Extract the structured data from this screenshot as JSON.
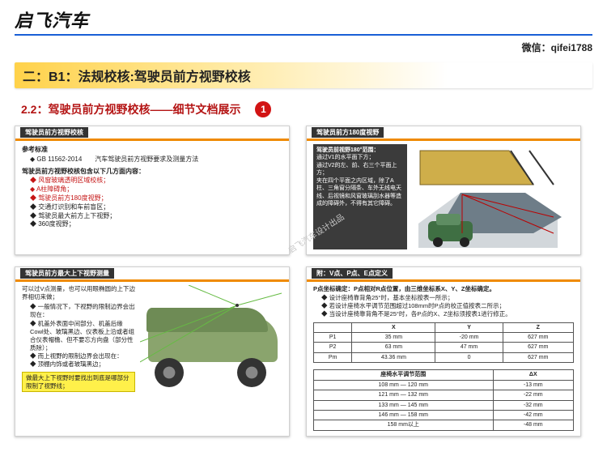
{
  "header": {
    "logo": "启飞汽车",
    "wechat": "微信：qifei1788"
  },
  "title": "二：B1：法规校核:驾驶员前方视野校核",
  "subtitle": "2.2：驾驶员前方视野校核——细节文档展示",
  "badge": "1",
  "watermark": "启飞汽车设计出品",
  "panel1": {
    "title": "驾驶员前方视野校核",
    "ref_head": "参考标准",
    "ref_item": "GB 11562-2014　　汽车驾驶员前方视野要求及测量方法",
    "sec_head": "驾驶员前方视野校核包含以下几方面内容：",
    "items": [
      {
        "t": "风窗玻璃透明区域校核；",
        "red": true
      },
      {
        "t": "A柱障碍角；",
        "red": true
      },
      {
        "t": "驾驶员前方180度视野；",
        "red": true
      },
      {
        "t": "交通灯识别和车前盲区；",
        "red": false
      },
      {
        "t": "驾驶员最大前方上下视野；",
        "red": false
      },
      {
        "t": "360度视野；",
        "red": false
      }
    ]
  },
  "panel2": {
    "title": "驾驶员前方180度视野",
    "box_head": "驾驶员前视野180°范围：",
    "lines": [
      "通过V1的水平面下方；",
      "通过V2的左、前、右三个平面上方；",
      "夹在四个平面之内区域，除了A柱、三角窗分隔条、车外无线电天线、后视镜和风窗玻璃刮水器等造成的障碍外，不得有其它障碍。"
    ],
    "colors": {
      "windshield": "#cfae4a",
      "car": "#3f6f43",
      "road": "#6e7d88"
    }
  },
  "panel3": {
    "title": "驾驶员前方最大上下视野测量",
    "line1": "可以过V点测量，也可以用眼椭圆的上下边界相切来做；",
    "bullets": [
      "一般情况下，下视野的限制边界会出现在：",
      "机盖外表面中间部分、机盖后缘Cowl处、玻璃黑边、仪表板上沿或者组合仪表帽檐、但不要忘方向盘（部分性质除）；",
      "而上视野的限制边界会出现在：",
      "顶棚内饰或者玻璃黑边；"
    ],
    "highlight": "做最大上下视野时要找出到底是哪部分限制了视野线；",
    "colors": {
      "body": "#8aa46d",
      "wheel_rim": "#888888",
      "tire": "#333333"
    }
  },
  "panel4": {
    "title": "附：V点、P点、E点定义",
    "def_head": "P点坐标确定：P点相对R点位置，由三维坐标系X、Y、Z坐标确定。",
    "b1": "设计座椅靠背角25°时，基本坐标按表一所示；",
    "b2": "若设计座椅水平调节范围超过108mm时P点的校正值按表二所示；",
    "b3": "当设计座椅靠背角不是25°时，各P点的X、Z坐标须按表1进行修正。",
    "table1": {
      "head": [
        "",
        "X",
        "Y",
        "Z"
      ],
      "rows": [
        [
          "P1",
          "35 mm",
          "-20 mm",
          "627 mm"
        ],
        [
          "P2",
          "63 mm",
          "47 mm",
          "627 mm"
        ],
        [
          "Pm",
          "43.36 mm",
          "0",
          "627 mm"
        ]
      ]
    },
    "table2a": {
      "head": [
        "座椅水平调节范围",
        "ΔX"
      ],
      "rows": [
        [
          "108 mm — 120 mm",
          "-13 mm"
        ],
        [
          "121 mm — 132 mm",
          "-22 mm"
        ],
        [
          "133 mm — 145 mm",
          "-32 mm"
        ],
        [
          "146 mm — 158 mm",
          "-42 mm"
        ],
        [
          "158 mm以上",
          "-48 mm"
        ]
      ]
    }
  }
}
